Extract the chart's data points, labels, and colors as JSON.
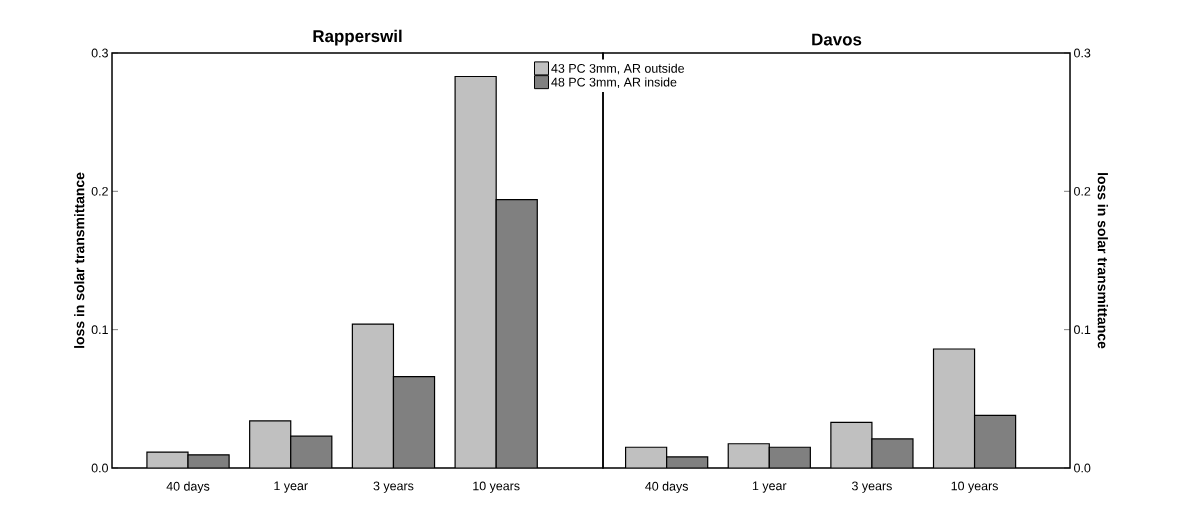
{
  "chart_data": [
    {
      "type": "bar",
      "title": "Rapperswil",
      "ylabel": "loss in solar transmittance",
      "categories": [
        "40 days",
        "1 year",
        "3 years",
        "10 years"
      ],
      "series": [
        {
          "name": "43 PC 3mm, AR outside",
          "color": "#c0c0c0",
          "values": [
            0.0115,
            0.034,
            0.104,
            0.283
          ]
        },
        {
          "name": "48 PC 3mm, AR inside",
          "color": "#808080",
          "values": [
            0.0095,
            0.023,
            0.066,
            0.194
          ]
        }
      ],
      "ylim": [
        0,
        0.3
      ],
      "yticks": [
        {
          "value": 0,
          "label": "0.0"
        },
        0.1,
        0.2,
        0.3
      ],
      "legend": "top right"
    },
    {
      "type": "bar",
      "title": "Davos",
      "ylabel": "loss in solar transmittance",
      "categories": [
        "40 days",
        "1 year",
        "3 years",
        "10 years"
      ],
      "series": [
        {
          "color": "#c0c0c0",
          "values": [
            0.015,
            0.0175,
            0.033,
            0.086
          ]
        },
        {
          "color": "#808080",
          "values": [
            0.008,
            0.015,
            0.021,
            0.038
          ]
        }
      ],
      "ylim": [
        0,
        0.3
      ],
      "yticks": [
        {
          "value": 0,
          "label": "0.0"
        },
        0.1,
        0.2,
        0.3
      ]
    }
  ]
}
